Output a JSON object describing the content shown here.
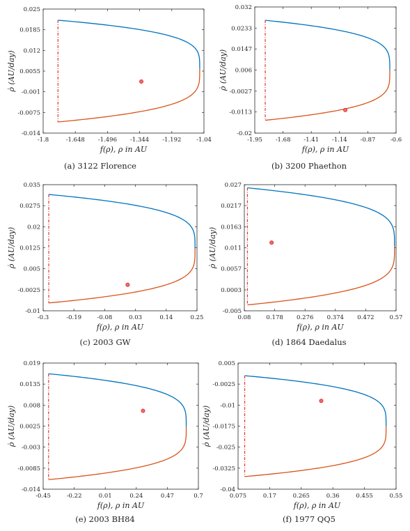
{
  "colors": {
    "upper_branch": "#0072BD",
    "lower_branch": "#D95319",
    "dash_line": "#E0312A",
    "point_fill": "#F46A6A",
    "point_stroke": "#D62828",
    "axes": "#262626"
  },
  "chart_data": [
    {
      "type": "line",
      "caption": "(a) 3122 Florence",
      "xlabel": "f(ρ),  ρ in AU",
      "ylabel": "ρ̇ (AU/day)",
      "xlim": [
        -1.8,
        -1.04
      ],
      "ylim": [
        -0.014,
        0.025
      ],
      "xticks": [
        "-1.8",
        "-1.648",
        "-1.496",
        "-1.344",
        "-1.192",
        "-1.04"
      ],
      "xtick_values": [
        -1.8,
        -1.648,
        -1.496,
        -1.344,
        -1.192,
        -1.04
      ],
      "yticks": [
        "0.025",
        "0.0185",
        "0.012",
        "0.0055",
        "-0.001",
        "-0.0075",
        "-0.014"
      ],
      "ytick_values": [
        0.025,
        0.0185,
        0.012,
        0.0055,
        -0.001,
        -0.0075,
        -0.014
      ],
      "x_left": -1.73,
      "x_right": -1.06,
      "y_top": 0.0215,
      "y_bottom": -0.0105,
      "y_tip": 0.0062,
      "point": {
        "x": -1.336,
        "y": 0.0022
      }
    },
    {
      "type": "line",
      "caption": "(b) 3200 Phaethon",
      "xlabel": "f(ρ),  ρ in AU",
      "ylabel": "ρ̇ (AU/day)",
      "xlim": [
        -1.95,
        -0.6
      ],
      "ylim": [
        -0.02,
        0.032
      ],
      "xticks": [
        "-1.95",
        "-1.68",
        "-1.41",
        "-1.14",
        "-0.87",
        "-0.6"
      ],
      "xtick_values": [
        -1.95,
        -1.68,
        -1.41,
        -1.14,
        -0.87,
        -0.6
      ],
      "yticks": [
        "0.032",
        "0.0233",
        "0.0147",
        "0.006",
        "-0.0027",
        "-0.0113",
        "-0.02"
      ],
      "ytick_values": [
        0.032,
        0.0233,
        0.0147,
        0.006,
        -0.0027,
        -0.0113,
        -0.02
      ],
      "x_left": -1.85,
      "x_right": -0.66,
      "y_top": 0.0265,
      "y_bottom": -0.0147,
      "y_tip": 0.006,
      "point": {
        "x": -1.085,
        "y": -0.0105
      }
    },
    {
      "type": "line",
      "caption": "(c) 2003 GW",
      "xlabel": "f(ρ),  ρ in AU",
      "ylabel": "ρ̇ (AU/day)",
      "xlim": [
        -0.3,
        0.25
      ],
      "ylim": [
        -0.01,
        0.035
      ],
      "xticks": [
        "-0.3",
        "-0.19",
        "-0.08",
        "0.03",
        "0.14",
        "0.25"
      ],
      "xtick_values": [
        -0.3,
        -0.19,
        -0.08,
        0.03,
        0.14,
        0.25
      ],
      "yticks": [
        "0.035",
        "0.0275",
        "0.02",
        "0.0125",
        "0.005",
        "-0.0025",
        "-0.01"
      ],
      "ytick_values": [
        0.035,
        0.0275,
        0.02,
        0.0125,
        0.005,
        -0.0025,
        -0.01
      ],
      "x_left": -0.28,
      "x_right": 0.243,
      "y_top": 0.0315,
      "y_bottom": -0.0072,
      "y_tip": 0.0122,
      "point": {
        "x": 0.002,
        "y": -0.0007
      }
    },
    {
      "type": "line",
      "caption": "(d) 1864 Daedalus",
      "xlabel": "f(ρ),  ρ in AU",
      "ylabel": "ρ̇ (AU/day)",
      "xlim": [
        0.08,
        0.57
      ],
      "ylim": [
        -0.005,
        0.027
      ],
      "xticks": [
        "0.08",
        "0.178",
        "0.276",
        "0.374",
        "0.472",
        "0.57"
      ],
      "xtick_values": [
        0.08,
        0.178,
        0.276,
        0.374,
        0.472,
        0.57
      ],
      "yticks": [
        "0.027",
        "0.0217",
        "0.0163",
        "0.011",
        "0.0057",
        "0.0003",
        "-0.005"
      ],
      "ytick_values": [
        0.027,
        0.0217,
        0.0163,
        0.011,
        0.0057,
        0.0003,
        -0.005
      ],
      "x_left": 0.09,
      "x_right": 0.565,
      "y_top": 0.0262,
      "y_bottom": -0.0035,
      "y_tip": 0.0113,
      "point": {
        "x": 0.168,
        "y": 0.0123
      }
    },
    {
      "type": "line",
      "caption": "(e) 2003 BH84",
      "xlabel": "f(ρ),  ρ in AU",
      "ylabel": "ρ̇ (AU/day)",
      "xlim": [
        -0.45,
        0.7
      ],
      "ylim": [
        -0.014,
        0.019
      ],
      "xticks": [
        "-0.45",
        "-0.22",
        "0.01",
        "0.24",
        "0.47",
        "0.7"
      ],
      "xtick_values": [
        -0.45,
        -0.22,
        0.01,
        0.24,
        0.47,
        0.7
      ],
      "yticks": [
        "0.019",
        "0.0135",
        "0.008",
        "0.0025",
        "-0.003",
        "-0.0085",
        "-0.014"
      ],
      "ytick_values": [
        0.019,
        0.0135,
        0.008,
        0.0025,
        -0.003,
        -0.0085,
        -0.014
      ],
      "x_left": -0.41,
      "x_right": 0.61,
      "y_top": 0.0162,
      "y_bottom": -0.0115,
      "y_tip": 0.0023,
      "point": {
        "x": 0.29,
        "y": 0.0065
      }
    },
    {
      "type": "line",
      "caption": "(f) 1977 QQ5",
      "xlabel": "f(ρ),  ρ in AU",
      "ylabel": "ρ̇ (AU/day)",
      "xlim": [
        0.075,
        0.55
      ],
      "ylim": [
        -0.04,
        0.005
      ],
      "xticks": [
        "0.075",
        "0.17",
        "0.265",
        "0.36",
        "0.455",
        "0.55"
      ],
      "xtick_values": [
        0.075,
        0.17,
        0.265,
        0.36,
        0.455,
        0.55
      ],
      "yticks": [
        "0.005",
        "-0.0025",
        "-0.01",
        "-0.0175",
        "-0.025",
        "-0.0325",
        "-0.04"
      ],
      "ytick_values": [
        0.005,
        -0.0025,
        -0.01,
        -0.0175,
        -0.025,
        -0.0325,
        -0.04
      ],
      "x_left": 0.095,
      "x_right": 0.52,
      "y_top": 0.0005,
      "y_bottom": -0.0355,
      "y_tip": -0.0175,
      "point": {
        "x": 0.325,
        "y": -0.0085
      }
    }
  ]
}
